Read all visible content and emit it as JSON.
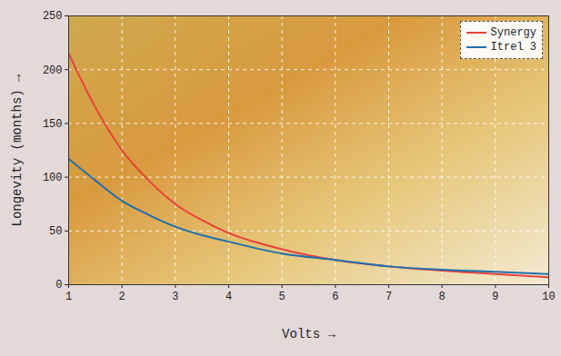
{
  "chart_data": {
    "type": "line",
    "x_label": "Volts",
    "y_label": "Longevity (months)",
    "x": [
      1,
      1.5,
      2,
      2.5,
      3,
      3.5,
      4,
      5,
      6,
      7,
      8,
      9,
      10
    ],
    "series": [
      {
        "name": "Synergy",
        "color": "#e8413b",
        "values": [
          215,
          165,
          125,
          97,
          75,
          60,
          48,
          33,
          23,
          17,
          13,
          10,
          7
        ]
      },
      {
        "name": "Itrel 3",
        "color": "#1f6fad",
        "values": [
          117,
          97,
          78,
          65,
          54,
          46,
          40,
          29,
          23,
          17,
          14,
          12,
          10
        ]
      }
    ],
    "xlim": [
      1,
      10
    ],
    "ylim": [
      0,
      250
    ],
    "xticks": [
      1,
      2,
      3,
      4,
      5,
      6,
      7,
      8,
      9,
      10
    ],
    "yticks": [
      0,
      50,
      100,
      150,
      200,
      250
    ],
    "grid": true,
    "legend": "top-right"
  }
}
